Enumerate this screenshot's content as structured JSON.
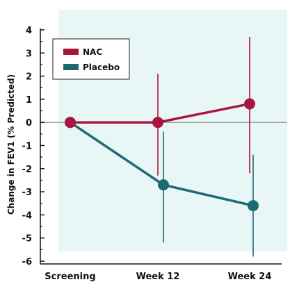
{
  "chart_data": {
    "type": "line",
    "title": "",
    "xlabel": "",
    "ylabel": "Change in FEV1 (% Predicted)",
    "categories": [
      "Screening",
      "Week 12",
      "Week 24"
    ],
    "ylim": [
      -6,
      4
    ],
    "yticks": [
      "4",
      "3",
      "2",
      "1",
      "0",
      "-1",
      "-2",
      "-3",
      "-4",
      "-5",
      "-6"
    ],
    "grid": false,
    "legend_position": "top-left",
    "series": [
      {
        "name": "NAC",
        "color": "#a8163f",
        "values": [
          0,
          0,
          0.8
        ],
        "error_low": [
          0,
          -2.3,
          -2.2
        ],
        "error_high": [
          0,
          2.1,
          3.7
        ]
      },
      {
        "name": "Placebo",
        "color": "#1e6a74",
        "values": [
          0,
          -2.7,
          -3.6
        ],
        "error_low": [
          0,
          -5.2,
          -5.8
        ],
        "error_high": [
          0,
          -0.4,
          -1.4
        ]
      }
    ],
    "background_color": "#e8f6f5",
    "zero_line_color": "#888888"
  }
}
